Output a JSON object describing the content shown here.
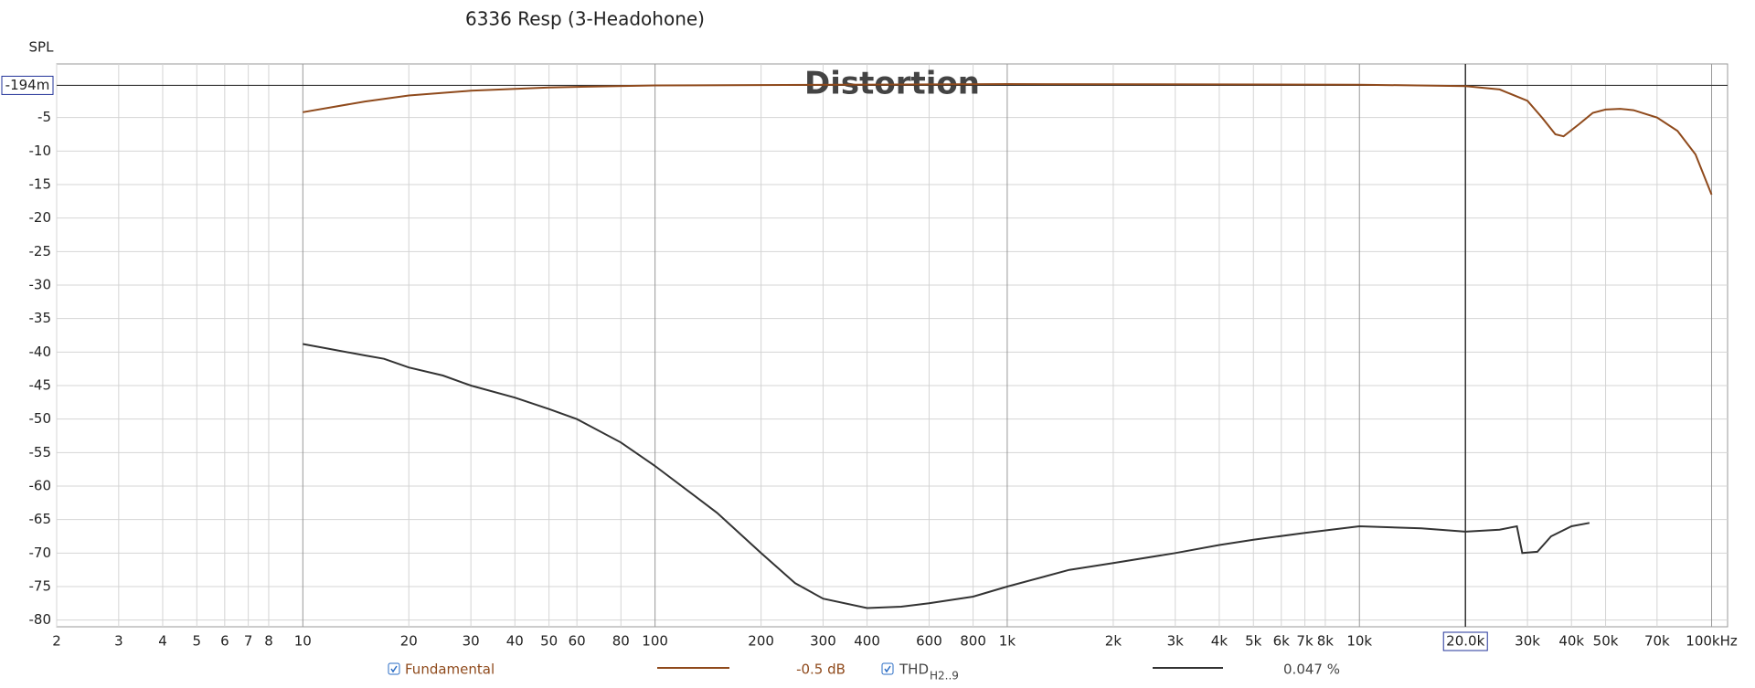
{
  "chart_data": {
    "type": "line",
    "title": "6336 Resp (3-Headohone)",
    "ylabel": "SPL",
    "watermark": "Distortion",
    "xscale": "log",
    "xlim": [
      2,
      111000
    ],
    "ylim": [
      -81,
      3
    ],
    "grid": true,
    "xticks": [
      2,
      3,
      4,
      5,
      6,
      7,
      8,
      10,
      20,
      30,
      40,
      50,
      60,
      80,
      100,
      200,
      300,
      400,
      600,
      800,
      {
        "value": 1000,
        "label": "1k"
      },
      {
        "value": 2000,
        "label": "2k"
      },
      {
        "value": 3000,
        "label": "3k"
      },
      {
        "value": 4000,
        "label": "4k"
      },
      {
        "value": 5000,
        "label": "5k"
      },
      {
        "value": 6000,
        "label": "6k"
      },
      {
        "value": 7000,
        "label": "7k"
      },
      {
        "value": 8000,
        "label": "8k"
      },
      {
        "value": 10000,
        "label": "10k"
      },
      {
        "value": 30000,
        "label": "30k"
      },
      {
        "value": 40000,
        "label": "40k"
      },
      {
        "value": 50000,
        "label": "50k"
      },
      {
        "value": 70000,
        "label": "70k"
      },
      {
        "value": 100000,
        "label": "100kHz"
      }
    ],
    "yticks": [
      -5,
      -10,
      -15,
      -20,
      -25,
      -30,
      -35,
      -40,
      -45,
      -50,
      -55,
      -60,
      -65,
      -70,
      -75,
      -80
    ],
    "xcursor": {
      "value": 20000,
      "label": "20.0k"
    },
    "ycursor": {
      "value": -0.194,
      "label": "-194m"
    },
    "series": [
      {
        "name": "Fundamental",
        "color": "#8f4a1c",
        "readout": "-0.5 dB",
        "x": [
          10,
          15,
          20,
          30,
          50,
          100,
          1000,
          10000,
          20000,
          25000,
          30000,
          33000,
          36000,
          38000,
          42000,
          46000,
          50000,
          55000,
          60000,
          70000,
          80000,
          90000,
          100000
        ],
        "values": [
          -4.2,
          -2.6,
          -1.7,
          -1.0,
          -0.5,
          -0.2,
          0,
          -0.1,
          -0.3,
          -0.8,
          -2.5,
          -5,
          -7.5,
          -7.8,
          -6,
          -4.3,
          -3.8,
          -3.7,
          -3.9,
          -5,
          -7,
          -10.5,
          -16.5
        ]
      },
      {
        "name": "THD",
        "name_subscript": "H2..9",
        "color": "#333333",
        "readout": "0.047 %",
        "x": [
          10,
          15,
          17,
          20,
          25,
          30,
          40,
          50,
          60,
          80,
          100,
          150,
          200,
          250,
          300,
          400,
          500,
          600,
          800,
          1000,
          1500,
          2000,
          3000,
          4000,
          5000,
          7000,
          10000,
          15000,
          20000,
          25000,
          28000,
          29000,
          32000,
          35000,
          40000,
          45000
        ],
        "values": [
          -38.8,
          -40.5,
          -41,
          -42.3,
          -43.5,
          -45,
          -46.8,
          -48.5,
          -50,
          -53.5,
          -57,
          -64,
          -70,
          -74.5,
          -76.8,
          -78.2,
          -78,
          -77.5,
          -76.5,
          -75,
          -72.5,
          -71.5,
          -70,
          -68.8,
          -68,
          -67,
          -66,
          -66.3,
          -66.8,
          -66.5,
          -66,
          -70,
          -69.8,
          -67.5,
          -66,
          -65.5
        ]
      }
    ]
  }
}
